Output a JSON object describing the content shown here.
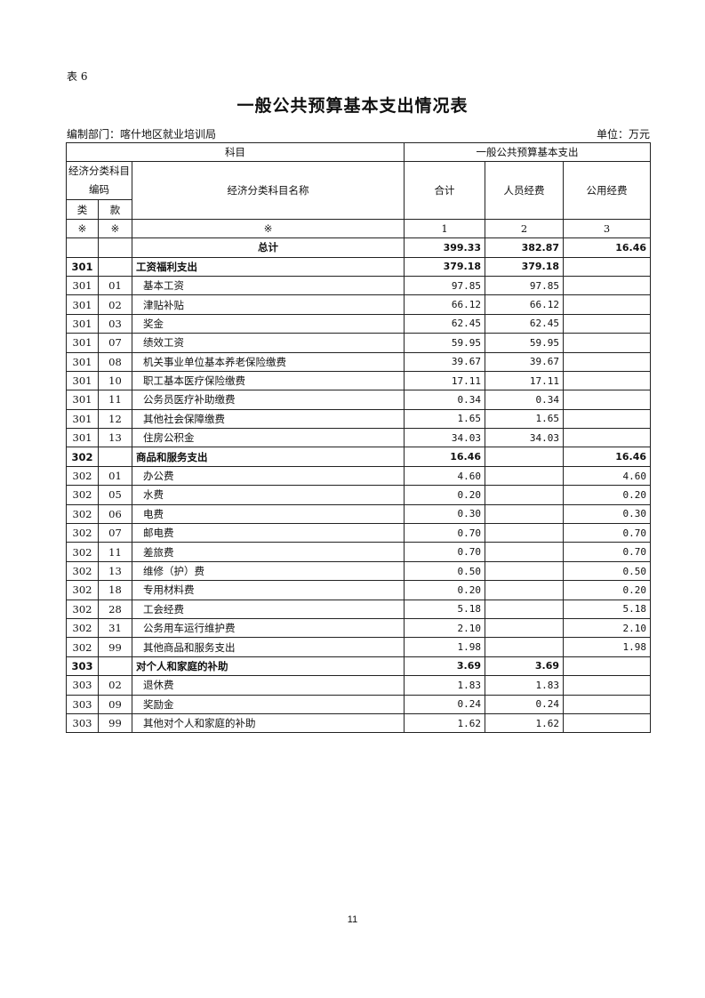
{
  "table_label": "表 6",
  "title": "一般公共预算基本支出情况表",
  "department": "编制部门：喀什地区就业培训局",
  "unit": "单位：万元",
  "header": {
    "subject": "科目",
    "basic_expenditure": "一般公共预算基本支出",
    "code": "经济分类科目编码",
    "name": "经济分类科目名称",
    "total": "合计",
    "personnel": "人员经费",
    "public": "公用经费",
    "class": "类",
    "item": "款",
    "markers": [
      "※",
      "※",
      "※",
      "1",
      "2",
      "3"
    ]
  },
  "grand_total": {
    "label": "总计",
    "total": "399.33",
    "personnel": "382.87",
    "public": "16.46"
  },
  "rows": [
    {
      "cls": "301",
      "item": "",
      "name": "工资福利支出",
      "total": "379.18",
      "personnel": "379.18",
      "public": "",
      "bold": true
    },
    {
      "cls": "301",
      "item": "01",
      "name": "基本工资",
      "total": "97.85",
      "personnel": "97.85",
      "public": ""
    },
    {
      "cls": "301",
      "item": "02",
      "name": "津贴补贴",
      "total": "66.12",
      "personnel": "66.12",
      "public": ""
    },
    {
      "cls": "301",
      "item": "03",
      "name": "奖金",
      "total": "62.45",
      "personnel": "62.45",
      "public": ""
    },
    {
      "cls": "301",
      "item": "07",
      "name": "绩效工资",
      "total": "59.95",
      "personnel": "59.95",
      "public": ""
    },
    {
      "cls": "301",
      "item": "08",
      "name": "机关事业单位基本养老保险缴费",
      "total": "39.67",
      "personnel": "39.67",
      "public": ""
    },
    {
      "cls": "301",
      "item": "10",
      "name": "职工基本医疗保险缴费",
      "total": "17.11",
      "personnel": "17.11",
      "public": ""
    },
    {
      "cls": "301",
      "item": "11",
      "name": "公务员医疗补助缴费",
      "total": "0.34",
      "personnel": "0.34",
      "public": ""
    },
    {
      "cls": "301",
      "item": "12",
      "name": "其他社会保障缴费",
      "total": "1.65",
      "personnel": "1.65",
      "public": ""
    },
    {
      "cls": "301",
      "item": "13",
      "name": "住房公积金",
      "total": "34.03",
      "personnel": "34.03",
      "public": ""
    },
    {
      "cls": "302",
      "item": "",
      "name": "商品和服务支出",
      "total": "16.46",
      "personnel": "",
      "public": "16.46",
      "bold": true
    },
    {
      "cls": "302",
      "item": "01",
      "name": "办公费",
      "total": "4.60",
      "personnel": "",
      "public": "4.60"
    },
    {
      "cls": "302",
      "item": "05",
      "name": "水费",
      "total": "0.20",
      "personnel": "",
      "public": "0.20"
    },
    {
      "cls": "302",
      "item": "06",
      "name": "电费",
      "total": "0.30",
      "personnel": "",
      "public": "0.30"
    },
    {
      "cls": "302",
      "item": "07",
      "name": "邮电费",
      "total": "0.70",
      "personnel": "",
      "public": "0.70"
    },
    {
      "cls": "302",
      "item": "11",
      "name": "差旅费",
      "total": "0.70",
      "personnel": "",
      "public": "0.70"
    },
    {
      "cls": "302",
      "item": "13",
      "name": "维修（护）费",
      "total": "0.50",
      "personnel": "",
      "public": "0.50"
    },
    {
      "cls": "302",
      "item": "18",
      "name": "专用材料费",
      "total": "0.20",
      "personnel": "",
      "public": "0.20"
    },
    {
      "cls": "302",
      "item": "28",
      "name": "工会经费",
      "total": "5.18",
      "personnel": "",
      "public": "5.18"
    },
    {
      "cls": "302",
      "item": "31",
      "name": "公务用车运行维护费",
      "total": "2.10",
      "personnel": "",
      "public": "2.10"
    },
    {
      "cls": "302",
      "item": "99",
      "name": "其他商品和服务支出",
      "total": "1.98",
      "personnel": "",
      "public": "1.98"
    },
    {
      "cls": "303",
      "item": "",
      "name": "对个人和家庭的补助",
      "total": "3.69",
      "personnel": "3.69",
      "public": "",
      "bold": true
    },
    {
      "cls": "303",
      "item": "02",
      "name": "退休费",
      "total": "1.83",
      "personnel": "1.83",
      "public": ""
    },
    {
      "cls": "303",
      "item": "09",
      "name": "奖励金",
      "total": "0.24",
      "personnel": "0.24",
      "public": ""
    },
    {
      "cls": "303",
      "item": "99",
      "name": "其他对个人和家庭的补助",
      "total": "1.62",
      "personnel": "1.62",
      "public": ""
    }
  ],
  "page_number": "11"
}
